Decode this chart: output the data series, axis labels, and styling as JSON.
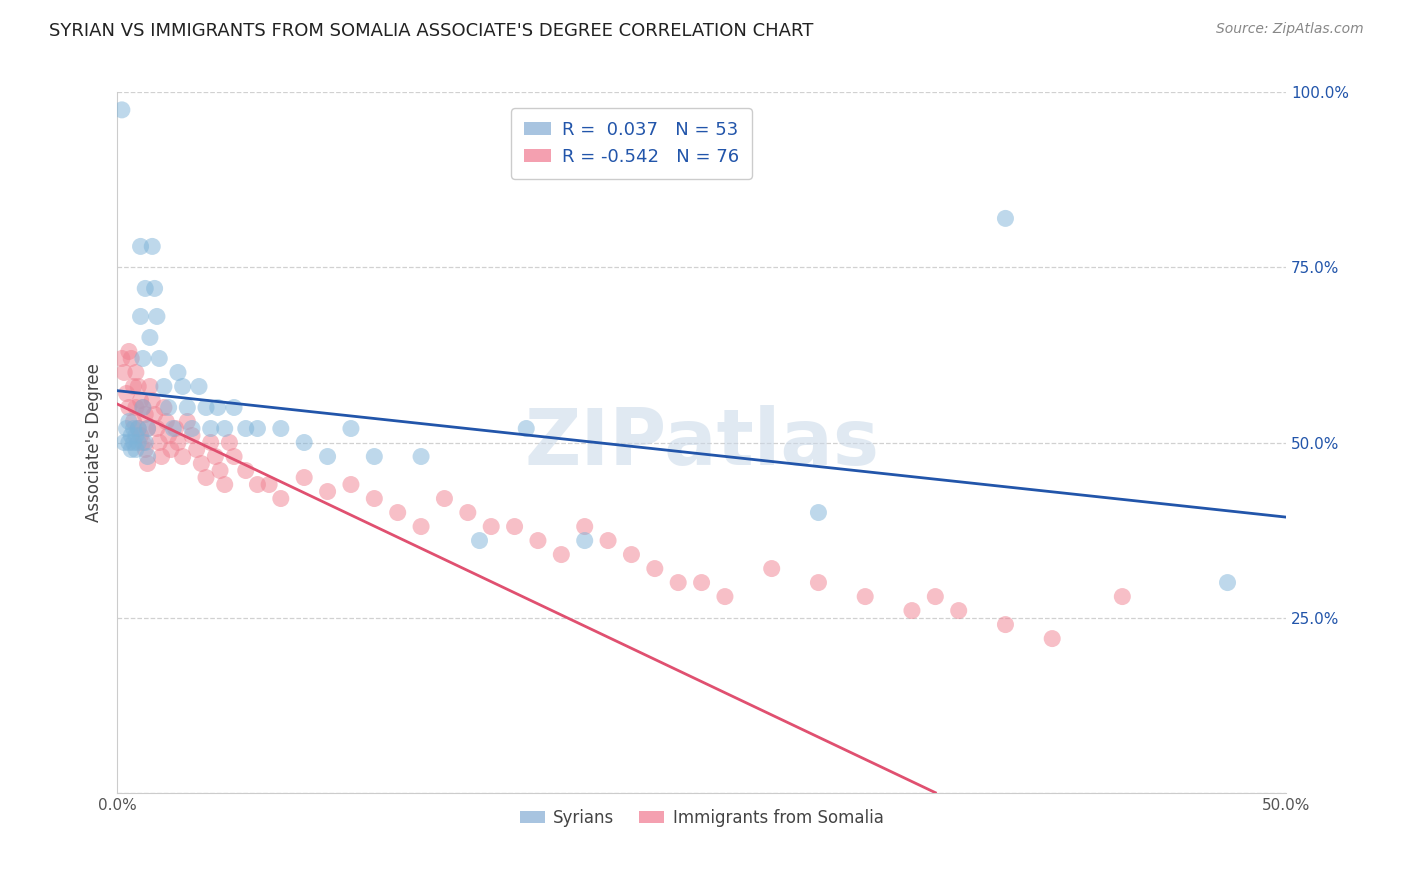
{
  "title": "SYRIAN VS IMMIGRANTS FROM SOMALIA ASSOCIATE'S DEGREE CORRELATION CHART",
  "source": "Source: ZipAtlas.com",
  "ylabel": "Associate's Degree",
  "xlim": [
    0.0,
    0.5
  ],
  "ylim": [
    0.0,
    1.0
  ],
  "x_ticks": [
    0.0,
    0.1,
    0.2,
    0.3,
    0.4,
    0.5
  ],
  "x_tick_labels": [
    "0.0%",
    "",
    "",
    "",
    "",
    "50.0%"
  ],
  "y_ticks": [
    0.0,
    0.25,
    0.5,
    0.75,
    1.0
  ],
  "y_tick_labels": [
    "",
    "25.0%",
    "50.0%",
    "75.0%",
    "100.0%"
  ],
  "syrians_color": "#7eb3d8",
  "somalia_color": "#f08090",
  "syrians_line_color": "#2255aa",
  "somalia_line_color": "#e05070",
  "legend_blue_patch": "#a8c4e0",
  "legend_pink_patch": "#f4a0b0",
  "watermark_color": "#c8d8e8",
  "background_color": "#ffffff",
  "grid_color": "#cccccc",
  "title_fontsize": 13,
  "syrians_x": [
    0.002,
    0.003,
    0.004,
    0.005,
    0.005,
    0.006,
    0.006,
    0.007,
    0.007,
    0.008,
    0.008,
    0.009,
    0.009,
    0.01,
    0.01,
    0.011,
    0.011,
    0.012,
    0.012,
    0.013,
    0.013,
    0.014,
    0.015,
    0.016,
    0.017,
    0.018,
    0.02,
    0.022,
    0.024,
    0.026,
    0.028,
    0.03,
    0.032,
    0.035,
    0.038,
    0.04,
    0.043,
    0.046,
    0.05,
    0.055,
    0.06,
    0.07,
    0.08,
    0.09,
    0.1,
    0.11,
    0.13,
    0.155,
    0.175,
    0.2,
    0.3,
    0.38,
    0.475
  ],
  "syrians_y": [
    0.975,
    0.5,
    0.52,
    0.5,
    0.53,
    0.51,
    0.49,
    0.52,
    0.5,
    0.51,
    0.49,
    0.52,
    0.5,
    0.78,
    0.68,
    0.62,
    0.55,
    0.72,
    0.5,
    0.52,
    0.48,
    0.65,
    0.78,
    0.72,
    0.68,
    0.62,
    0.58,
    0.55,
    0.52,
    0.6,
    0.58,
    0.55,
    0.52,
    0.58,
    0.55,
    0.52,
    0.55,
    0.52,
    0.55,
    0.52,
    0.52,
    0.52,
    0.5,
    0.48,
    0.52,
    0.48,
    0.48,
    0.36,
    0.52,
    0.36,
    0.4,
    0.82,
    0.3
  ],
  "somalia_x": [
    0.002,
    0.003,
    0.004,
    0.005,
    0.005,
    0.006,
    0.007,
    0.007,
    0.008,
    0.008,
    0.009,
    0.009,
    0.01,
    0.01,
    0.011,
    0.011,
    0.012,
    0.012,
    0.013,
    0.013,
    0.014,
    0.015,
    0.016,
    0.017,
    0.018,
    0.019,
    0.02,
    0.021,
    0.022,
    0.023,
    0.025,
    0.026,
    0.028,
    0.03,
    0.032,
    0.034,
    0.036,
    0.038,
    0.04,
    0.042,
    0.044,
    0.046,
    0.048,
    0.05,
    0.055,
    0.06,
    0.065,
    0.07,
    0.08,
    0.09,
    0.1,
    0.11,
    0.12,
    0.13,
    0.14,
    0.15,
    0.16,
    0.17,
    0.18,
    0.19,
    0.2,
    0.21,
    0.22,
    0.23,
    0.24,
    0.25,
    0.26,
    0.28,
    0.3,
    0.32,
    0.34,
    0.35,
    0.36,
    0.38,
    0.4,
    0.43
  ],
  "somalia_y": [
    0.62,
    0.6,
    0.57,
    0.63,
    0.55,
    0.62,
    0.58,
    0.53,
    0.6,
    0.55,
    0.58,
    0.52,
    0.56,
    0.51,
    0.55,
    0.5,
    0.54,
    0.49,
    0.52,
    0.47,
    0.58,
    0.56,
    0.54,
    0.52,
    0.5,
    0.48,
    0.55,
    0.53,
    0.51,
    0.49,
    0.52,
    0.5,
    0.48,
    0.53,
    0.51,
    0.49,
    0.47,
    0.45,
    0.5,
    0.48,
    0.46,
    0.44,
    0.5,
    0.48,
    0.46,
    0.44,
    0.44,
    0.42,
    0.45,
    0.43,
    0.44,
    0.42,
    0.4,
    0.38,
    0.42,
    0.4,
    0.38,
    0.38,
    0.36,
    0.34,
    0.38,
    0.36,
    0.34,
    0.32,
    0.3,
    0.3,
    0.28,
    0.32,
    0.3,
    0.28,
    0.26,
    0.28,
    0.26,
    0.24,
    0.22,
    0.28
  ]
}
